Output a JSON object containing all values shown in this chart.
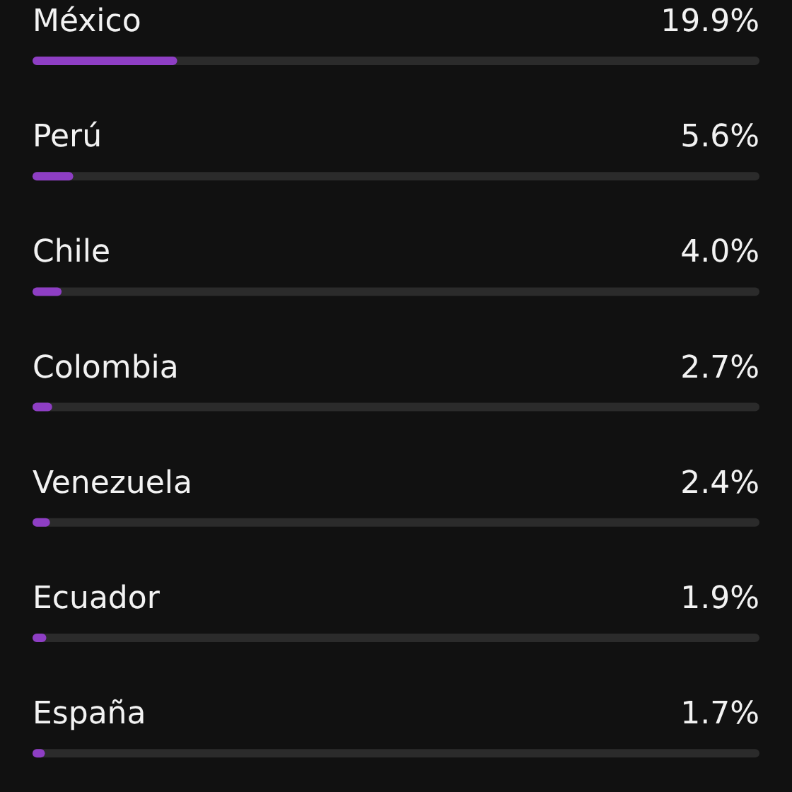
{
  "chart_data": {
    "type": "bar",
    "orientation": "horizontal",
    "categories": [
      "México",
      "Perú",
      "Chile",
      "Colombia",
      "Venezuela",
      "Ecuador",
      "España"
    ],
    "values": [
      19.9,
      5.6,
      4.0,
      2.7,
      2.4,
      1.9,
      1.7
    ],
    "value_labels": [
      "19.9%",
      "5.6%",
      "4.0%",
      "2.7%",
      "2.4%",
      "1.9%",
      "1.7%"
    ],
    "color": "#8e3ec4",
    "xlim": [
      0,
      100
    ],
    "tick_labels": "y"
  }
}
